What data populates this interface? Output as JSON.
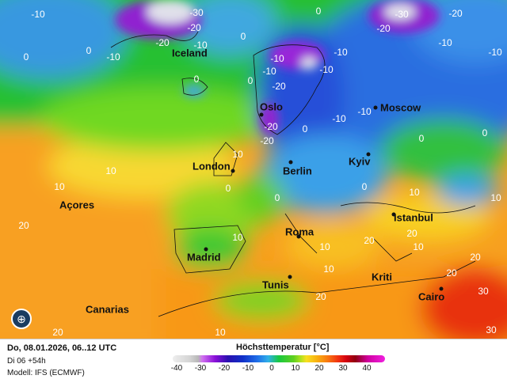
{
  "map": {
    "cities": [
      {
        "name": "Iceland",
        "dot": false
      },
      {
        "name": "Oslo",
        "dot": true
      },
      {
        "name": "Moscow",
        "dot": true
      },
      {
        "name": "London",
        "dot": true
      },
      {
        "name": "Berlin",
        "dot": true
      },
      {
        "name": "Kyiv",
        "dot": true
      },
      {
        "name": "Açores",
        "dot": false
      },
      {
        "name": "Madrid",
        "dot": true
      },
      {
        "name": "Roma",
        "dot": true
      },
      {
        "name": "Istanbul",
        "dot": true
      },
      {
        "name": "Tunis",
        "dot": true
      },
      {
        "name": "Kriti",
        "dot": false
      },
      {
        "name": "Cairo",
        "dot": true
      },
      {
        "name": "Canarias",
        "dot": false
      }
    ],
    "isolines": [
      "-10",
      "-30",
      "-20",
      "-10",
      "-20",
      "0",
      "0",
      "-10",
      "0",
      "-30",
      "-20",
      "-20",
      "-10",
      "-10",
      "0",
      "-10",
      "-20",
      "-10",
      "-10",
      "0",
      "-10",
      "0",
      "-20",
      "-20",
      "-10",
      "0",
      "-10",
      "0",
      "10",
      "10",
      "0",
      "0",
      "10",
      "10",
      "10",
      "20",
      "0",
      "0",
      "10",
      "20",
      "20",
      "20",
      "20",
      "30",
      "10",
      "30",
      "20",
      "10",
      "10",
      "20",
      "10"
    ],
    "logo_icon": "globe-logo-icon"
  },
  "footer": {
    "run": "Do, 08.01.2026, 06..12 UTC",
    "step": "Di 06 +54h",
    "model": "Modell: IFS (ECMWF)",
    "legend_title": "Höchsttemperatur [°C]",
    "legend_ticks": [
      "-40",
      "-30",
      "-20",
      "-10",
      "0",
      "10",
      "20",
      "30",
      "40"
    ]
  },
  "colors": {
    "cold_extreme": "#e8e8f0",
    "very_cold": "#9020d0",
    "cold": "#2040d0",
    "cool": "#30a0e8",
    "mild": "#20c030",
    "warm": "#f8d020",
    "hot": "#f89010",
    "very_hot": "#e02010"
  }
}
